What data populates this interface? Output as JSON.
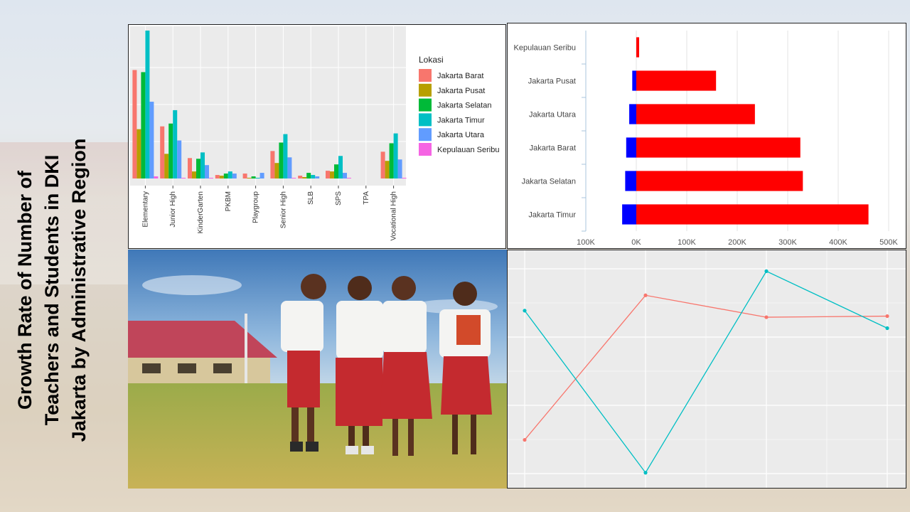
{
  "slide": {
    "title_lines": [
      "Growth Rate of Number of",
      "Teachers and Students in DKI",
      "Jakarta by Administrative Region"
    ]
  },
  "chart_data": [
    {
      "type": "bar",
      "categories": [
        "Elementary",
        "Junior High",
        "KinderGarten",
        "PKBM",
        "Playgroup",
        "Senior High",
        "SLB",
        "SPS",
        "TPA",
        "Vocational High"
      ],
      "legend_title": "Lokasi",
      "legend_position": "right",
      "grid": true,
      "ylim": [
        0,
        210
      ],
      "series": [
        {
          "name": "Jakarta Barat",
          "color": "#f8766d",
          "values": [
            154,
            74,
            29,
            5,
            7,
            39,
            4,
            11,
            0,
            38
          ]
        },
        {
          "name": "Jakarta Pusat",
          "color": "#b79f00",
          "values": [
            70,
            35,
            10,
            4,
            1,
            22,
            2,
            10,
            0,
            25
          ]
        },
        {
          "name": "Jakarta Selatan",
          "color": "#00ba38",
          "values": [
            151,
            78,
            28,
            7,
            3,
            51,
            8,
            20,
            0,
            50
          ]
        },
        {
          "name": "Jakarta Timur",
          "color": "#00bfc4",
          "values": [
            210,
            97,
            37,
            10,
            1,
            63,
            5,
            32,
            0,
            64
          ]
        },
        {
          "name": "Jakarta Utara",
          "color": "#619cff",
          "values": [
            109,
            54,
            19,
            7,
            8,
            30,
            3,
            8,
            0,
            27
          ]
        },
        {
          "name": "Kepulauan Seribu",
          "color": "#f564e3",
          "values": [
            3,
            1,
            1,
            0,
            0,
            1,
            0,
            1,
            0,
            1
          ]
        }
      ]
    },
    {
      "type": "bar",
      "orientation": "horizontal",
      "categories": [
        "Kepulauan Seribu",
        "Jakarta Pusat",
        "Jakarta Utara",
        "Jakarta Barat",
        "Jakarta Selatan",
        "Jakarta Timur"
      ],
      "x_ticks": [
        "100K",
        "0K",
        "100K",
        "200K",
        "300K",
        "400K",
        "500K"
      ],
      "xlim": [
        -100000,
        500000
      ],
      "grid": true,
      "series": [
        {
          "color": "#0000ff",
          "values": [
            0,
            -8000,
            -14000,
            -20000,
            -22000,
            -28000
          ]
        },
        {
          "color": "#ff0000",
          "values": [
            3000,
            158000,
            235000,
            325000,
            330000,
            460000
          ]
        }
      ]
    },
    {
      "type": "line",
      "grid": true,
      "x": [
        1,
        2,
        3,
        4
      ],
      "ylim": [
        0,
        1
      ],
      "series": [
        {
          "color": "#f8766d",
          "values": [
            0.18,
            0.84,
            0.74,
            0.745
          ]
        },
        {
          "color": "#00bfc4",
          "values": [
            0.77,
            0.03,
            0.95,
            0.69
          ]
        }
      ]
    }
  ],
  "photo": {
    "sky_color": "#6e9fd0",
    "grass_color": "#8fa042",
    "roof_color": "#c0455a",
    "uniform_shirt": "#f4f4f2",
    "uniform_skirt": "#c42a2f"
  }
}
